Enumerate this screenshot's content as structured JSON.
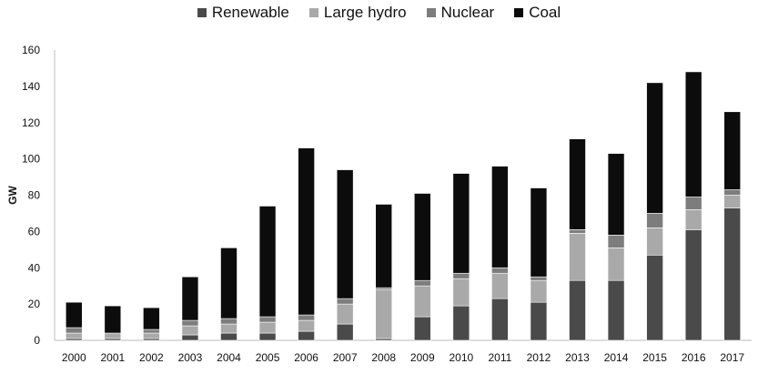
{
  "chart_data": {
    "type": "bar",
    "stacked": true,
    "categories": [
      "2000",
      "2001",
      "2002",
      "2003",
      "2004",
      "2005",
      "2006",
      "2007",
      "2008",
      "2009",
      "2010",
      "2011",
      "2012",
      "2013",
      "2014",
      "2015",
      "2016",
      "2017"
    ],
    "series": [
      {
        "name": "Renewable",
        "color": "#4a4a4a",
        "values": [
          1,
          1,
          1,
          3,
          4,
          4,
          5,
          9,
          1,
          13,
          19,
          23,
          21,
          33,
          33,
          47,
          61,
          73
        ]
      },
      {
        "name": "Large hydro",
        "color": "#a9a9a9",
        "values": [
          3,
          3,
          3,
          5,
          5,
          6,
          6,
          11,
          27,
          17,
          15,
          14,
          12,
          26,
          18,
          15,
          11,
          7
        ]
      },
      {
        "name": "Nuclear",
        "color": "#7d7d7d",
        "values": [
          3,
          0,
          2,
          3,
          3,
          3,
          3,
          3,
          1,
          3,
          3,
          3,
          2,
          2,
          7,
          8,
          7,
          3
        ]
      },
      {
        "name": "Coal",
        "color": "#0c0c0c",
        "values": [
          14,
          15,
          12,
          24,
          39,
          61,
          92,
          71,
          46,
          48,
          55,
          56,
          49,
          50,
          45,
          72,
          69,
          43
        ]
      }
    ],
    "xlabel": "",
    "ylabel": "GW",
    "ylim": [
      0,
      160
    ],
    "yticks": [
      0,
      20,
      40,
      60,
      80,
      100,
      120,
      140,
      160
    ],
    "grid": false,
    "legend_position": "top"
  }
}
